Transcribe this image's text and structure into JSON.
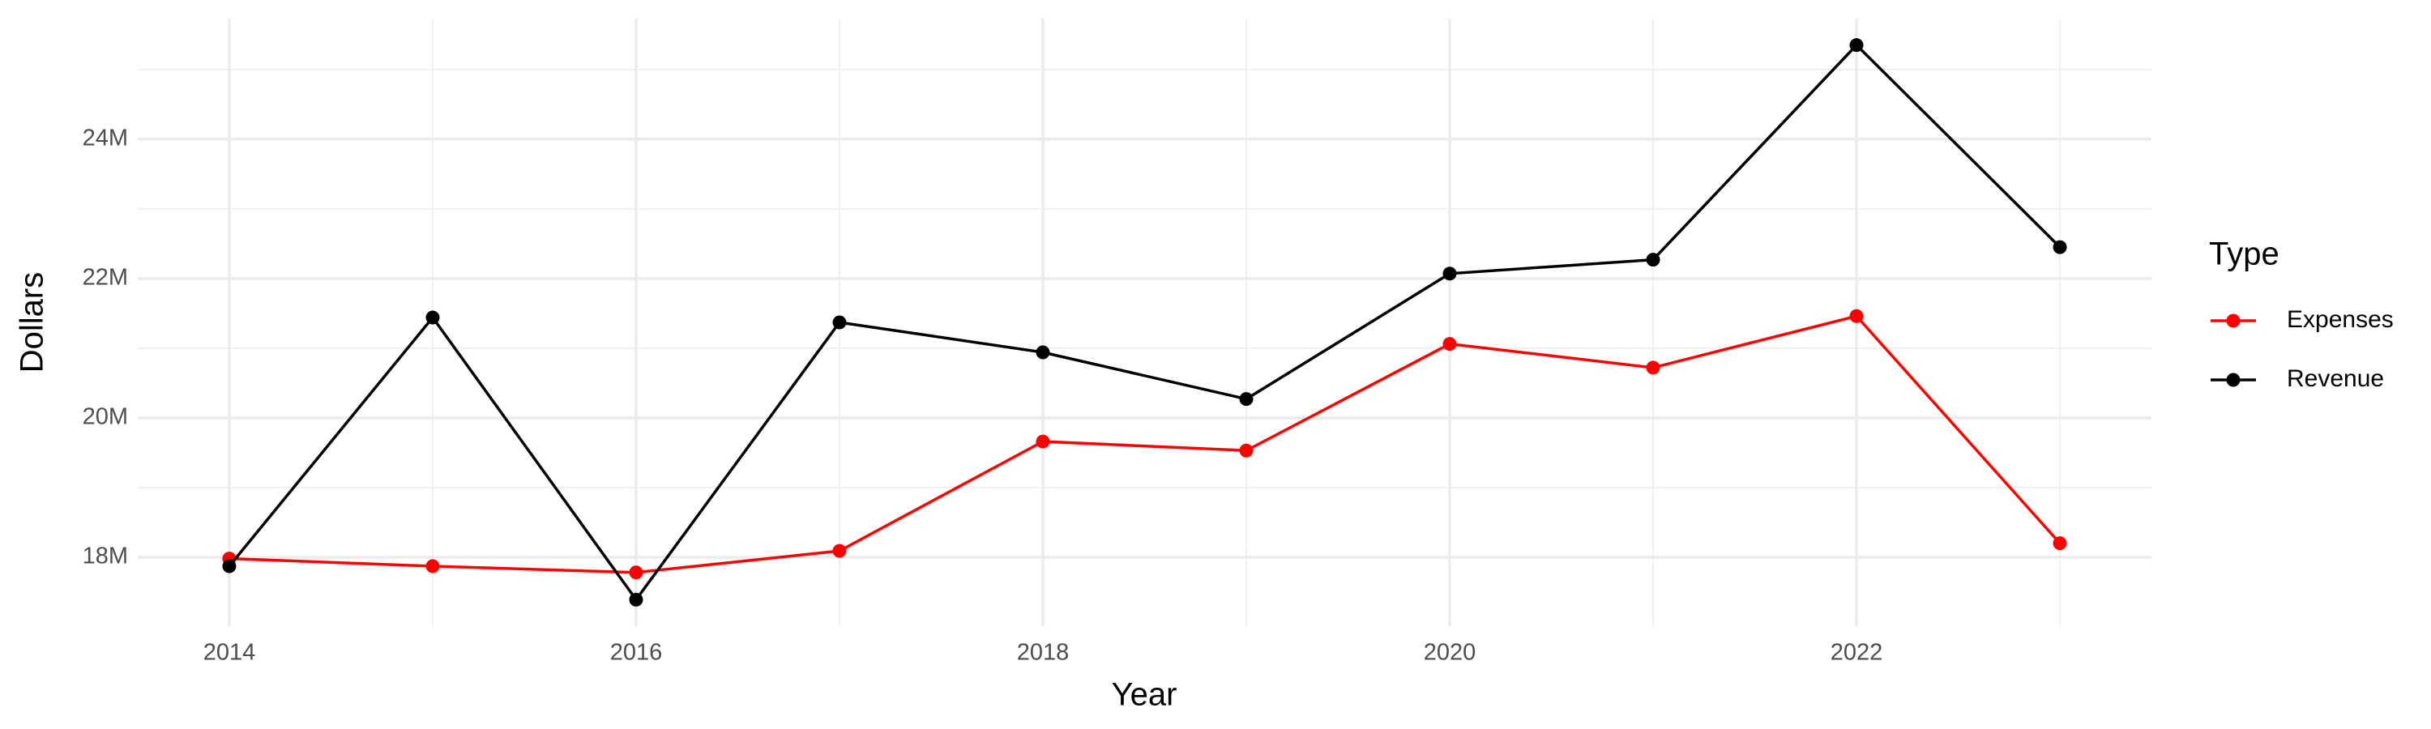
{
  "chart_data": {
    "type": "line",
    "x_label": "Year",
    "y_label": "Dollars",
    "legend_title": "Type",
    "x": [
      2014,
      2015,
      2016,
      2017,
      2018,
      2019,
      2020,
      2021,
      2022,
      2023
    ],
    "series": [
      {
        "name": "Expenses",
        "color": "#ff0000",
        "values": [
          17980000,
          17870000,
          17780000,
          18090000,
          19660000,
          19530000,
          21060000,
          20720000,
          21460000,
          18200000
        ]
      },
      {
        "name": "Revenue",
        "color": "#000000",
        "values": [
          17870000,
          21440000,
          17390000,
          21370000,
          20940000,
          20270000,
          22070000,
          22270000,
          25350000,
          22450000
        ]
      }
    ],
    "xlim": [
      2013.55,
      2023.45
    ],
    "xticks": [
      2014,
      2016,
      2018,
      2020,
      2022
    ],
    "ylim": [
      17010000,
      25730000
    ],
    "yticks": [
      {
        "value": 18000000,
        "label": "18M"
      },
      {
        "value": 20000000,
        "label": "20M"
      },
      {
        "value": 22000000,
        "label": "22M"
      },
      {
        "value": 24000000,
        "label": "24M"
      }
    ],
    "grid": true,
    "minor_grid": true,
    "legend_position": "right"
  }
}
